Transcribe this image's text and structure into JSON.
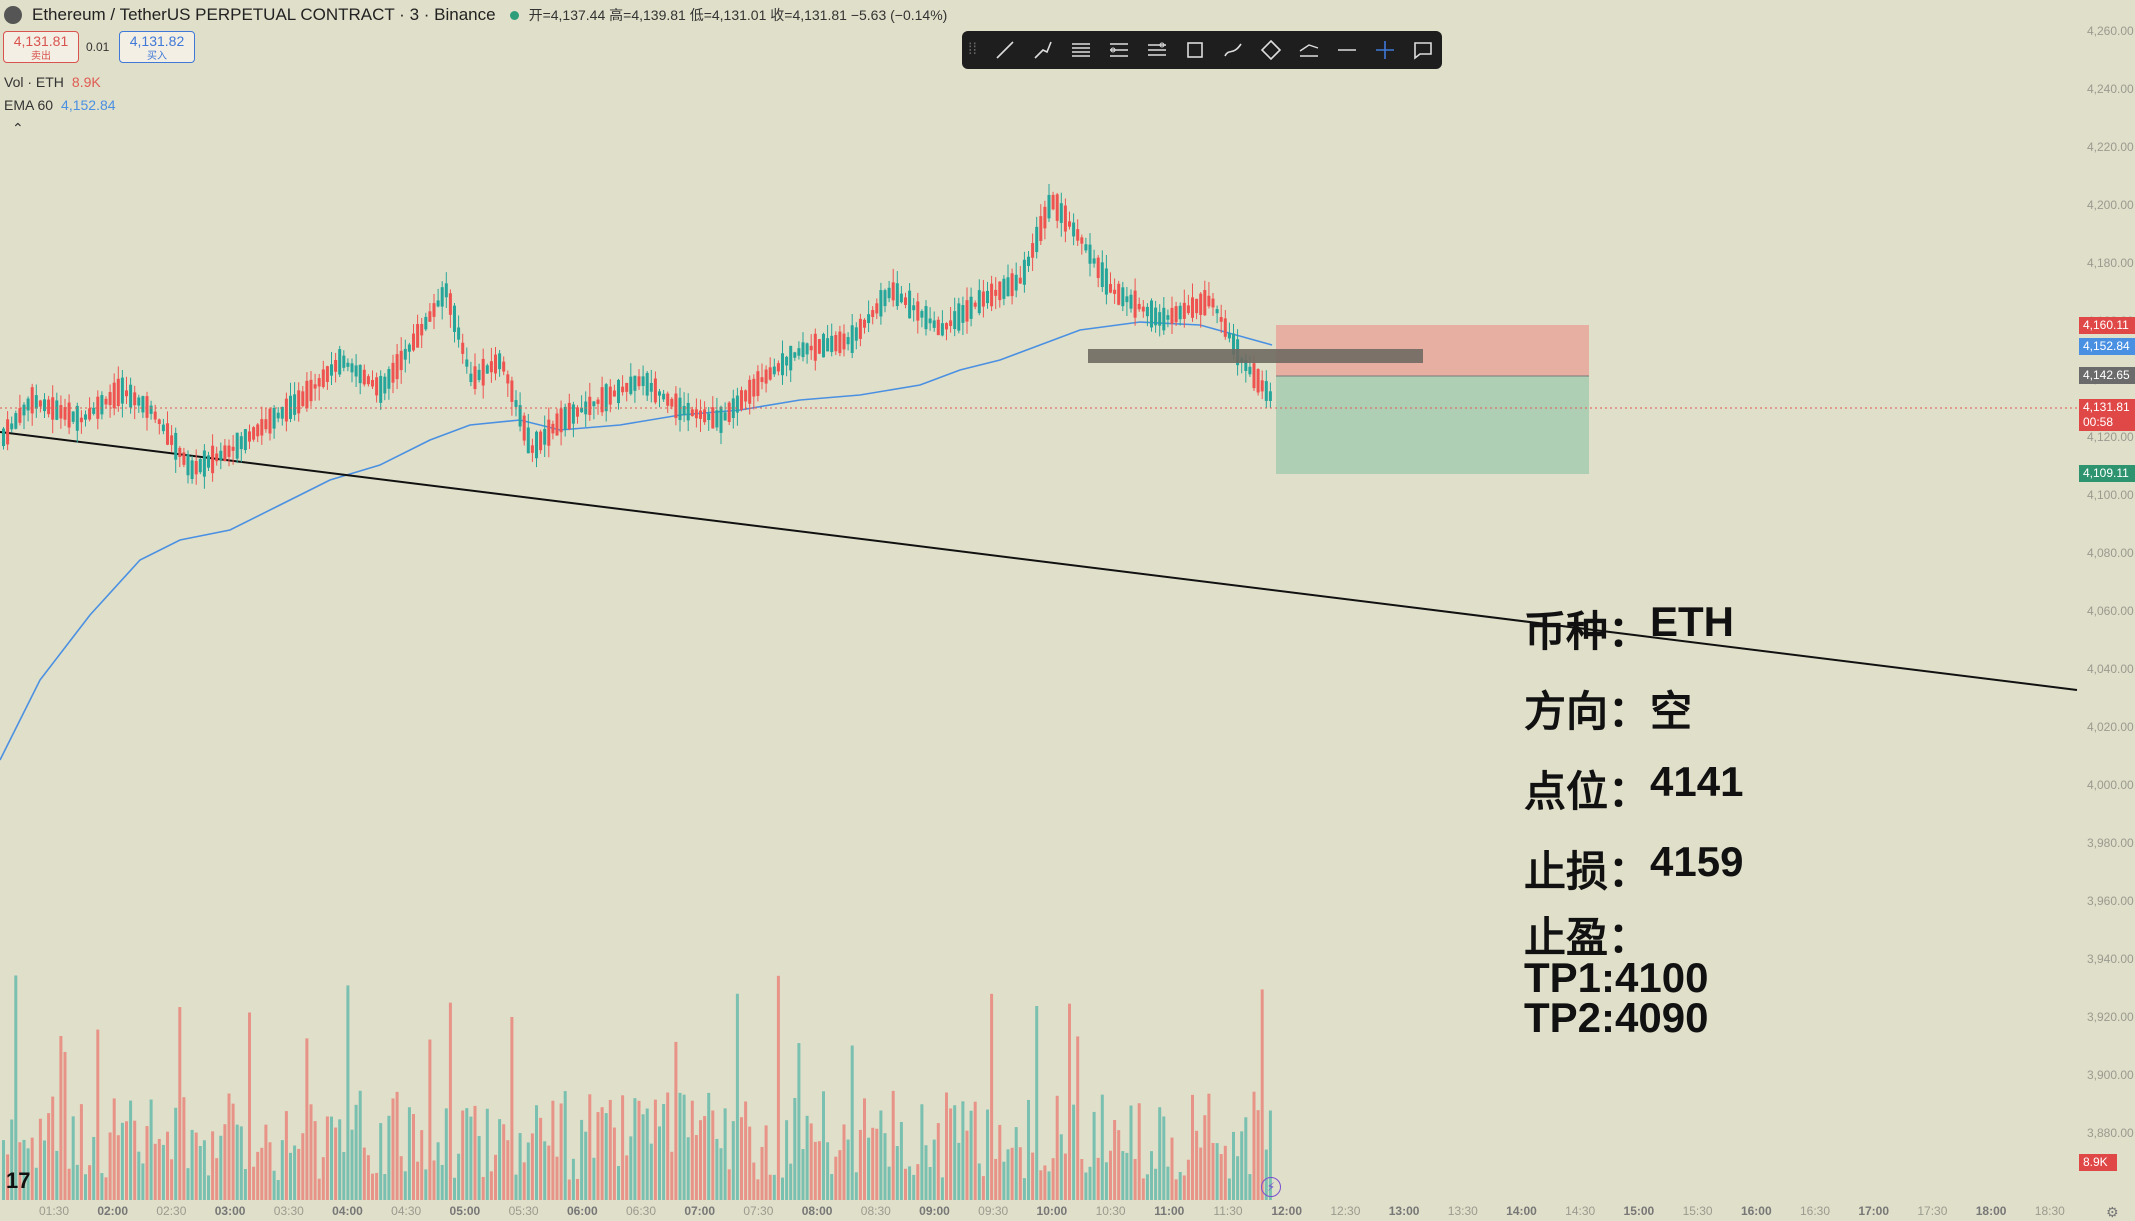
{
  "header": {
    "title": "Ethereum / TetherUS PERPETUAL CONTRACT · 3 · Binance",
    "ohlc": "开=4,137.44 高=4,139.81 低=4,131.01 收=4,131.81 −5.63 (−0.14%)"
  },
  "trade_buttons": {
    "sell_price": "4,131.81",
    "sell_label": "卖出",
    "spread": "0.01",
    "buy_price": "4,131.82",
    "buy_label": "买入"
  },
  "indicators": {
    "vol_label": "Vol · ETH",
    "vol_value": "8.9K",
    "ema_label": "EMA 60",
    "ema_value": "4,152.84"
  },
  "price_tags": {
    "stop": "4,160.11",
    "ema": "4,152.84",
    "entry": "4,142.65",
    "current": "4,131.81",
    "countdown": "00:58",
    "target": "4,109.11",
    "volume": "8.9K"
  },
  "y_axis": [
    "4,260.00",
    "4,240.00",
    "4,220.00",
    "4,200.00",
    "4,180.00",
    "4,160.00",
    "4,140.00",
    "4,120.00",
    "4,100.00",
    "4,080.00",
    "4,060.00",
    "4,040.00",
    "4,020.00",
    "4,000.00",
    "3,980.00",
    "3,960.00",
    "3,940.00",
    "3,920.00",
    "3,900.00",
    "3,880.00"
  ],
  "x_axis": [
    {
      "t": "01:30",
      "b": false
    },
    {
      "t": "02:00",
      "b": true
    },
    {
      "t": "02:30",
      "b": false
    },
    {
      "t": "03:00",
      "b": true
    },
    {
      "t": "03:30",
      "b": false
    },
    {
      "t": "04:00",
      "b": true
    },
    {
      "t": "04:30",
      "b": false
    },
    {
      "t": "05:00",
      "b": true
    },
    {
      "t": "05:30",
      "b": false
    },
    {
      "t": "06:00",
      "b": true
    },
    {
      "t": "06:30",
      "b": false
    },
    {
      "t": "07:00",
      "b": true
    },
    {
      "t": "07:30",
      "b": false
    },
    {
      "t": "08:00",
      "b": true
    },
    {
      "t": "08:30",
      "b": false
    },
    {
      "t": "09:00",
      "b": true
    },
    {
      "t": "09:30",
      "b": false
    },
    {
      "t": "10:00",
      "b": true
    },
    {
      "t": "10:30",
      "b": false
    },
    {
      "t": "11:00",
      "b": true
    },
    {
      "t": "11:30",
      "b": false
    },
    {
      "t": "12:00",
      "b": true
    },
    {
      "t": "12:30",
      "b": false
    },
    {
      "t": "13:00",
      "b": true
    },
    {
      "t": "13:30",
      "b": false
    },
    {
      "t": "14:00",
      "b": true
    },
    {
      "t": "14:30",
      "b": false
    },
    {
      "t": "15:00",
      "b": true
    },
    {
      "t": "15:30",
      "b": false
    },
    {
      "t": "16:00",
      "b": true
    },
    {
      "t": "16:30",
      "b": false
    },
    {
      "t": "17:00",
      "b": true
    },
    {
      "t": "17:30",
      "b": false
    },
    {
      "t": "18:00",
      "b": true
    },
    {
      "t": "18:30",
      "b": false
    }
  ],
  "toolbar": {
    "tools": [
      "trend-line-icon",
      "pen-icon",
      "parallel-channel-icon",
      "fib-retracement-icon",
      "gann-icon",
      "rectangle-icon",
      "brush-icon",
      "pattern-icon",
      "forecast-icon",
      "horizontal-line-icon",
      "crosshair-icon",
      "comment-icon"
    ]
  },
  "trade_plan": {
    "coin_label": "币种：",
    "coin_value": "ETH",
    "direction_label": "方向：",
    "direction_value": "空",
    "entry_label": "点位：",
    "entry_value": "4141",
    "stop_label": "止损：",
    "stop_value": "4159",
    "tp_label": "止盈：",
    "tp1": "TP1:4100",
    "tp2": "TP2:4090"
  },
  "colors": {
    "up": "#26a69a",
    "down": "#ef5350",
    "ema": "#4a90e2",
    "stop_zone": "#e8a79b",
    "profit_zone": "#a6cdb0",
    "background": "#e0dfc9"
  },
  "chart_data": {
    "type": "candlestick",
    "symbol": "ETHUSDT.P",
    "timeframe": "3",
    "last": 4131.81,
    "ema60_last": 4152.84,
    "session_high_approx": 4219,
    "session_low_approx": 4078,
    "short_position": {
      "entry": 4142.65,
      "stop": 4160.11,
      "target": 4109.11
    }
  }
}
